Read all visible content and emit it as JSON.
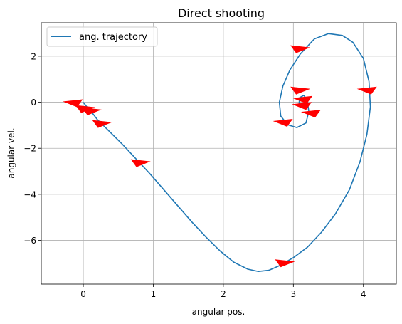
{
  "chart_data": {
    "type": "line",
    "title": "Direct shooting",
    "xlabel": "angular pos.",
    "ylabel": "angular vel.",
    "xlim": [
      -0.6,
      4.47
    ],
    "ylim": [
      -7.9,
      3.45
    ],
    "xticks": [
      0,
      1,
      2,
      3,
      4
    ],
    "yticks": [
      -6,
      -4,
      -2,
      0,
      2
    ],
    "grid": true,
    "legend_position": "top-left",
    "series": [
      {
        "name": "ang. trajectory",
        "color": "#1f77b4",
        "points": [
          [
            0.0,
            0.0
          ],
          [
            0.05,
            -0.2
          ],
          [
            0.1,
            -0.35
          ],
          [
            0.2,
            -0.75
          ],
          [
            0.35,
            -1.2
          ],
          [
            0.55,
            -1.8
          ],
          [
            0.75,
            -2.45
          ],
          [
            0.95,
            -3.1
          ],
          [
            1.15,
            -3.8
          ],
          [
            1.35,
            -4.5
          ],
          [
            1.55,
            -5.2
          ],
          [
            1.75,
            -5.85
          ],
          [
            1.95,
            -6.45
          ],
          [
            2.15,
            -6.95
          ],
          [
            2.35,
            -7.25
          ],
          [
            2.5,
            -7.35
          ],
          [
            2.65,
            -7.3
          ],
          [
            2.8,
            -7.1
          ],
          [
            3.0,
            -6.75
          ],
          [
            3.2,
            -6.3
          ],
          [
            3.4,
            -5.65
          ],
          [
            3.6,
            -4.85
          ],
          [
            3.8,
            -3.8
          ],
          [
            3.95,
            -2.6
          ],
          [
            4.05,
            -1.4
          ],
          [
            4.1,
            -0.2
          ],
          [
            4.08,
            0.9
          ],
          [
            4.0,
            1.9
          ],
          [
            3.85,
            2.6
          ],
          [
            3.7,
            2.9
          ],
          [
            3.5,
            2.98
          ],
          [
            3.3,
            2.75
          ],
          [
            3.1,
            2.1
          ],
          [
            2.95,
            1.4
          ],
          [
            2.85,
            0.7
          ],
          [
            2.8,
            0.0
          ],
          [
            2.82,
            -0.6
          ],
          [
            2.92,
            -0.98
          ],
          [
            3.05,
            -1.1
          ],
          [
            3.18,
            -0.9
          ],
          [
            3.22,
            -0.4
          ],
          [
            3.2,
            0.05
          ],
          [
            3.15,
            0.3
          ],
          [
            3.09,
            0.2
          ],
          [
            3.08,
            -0.1
          ],
          [
            3.14,
            -0.2
          ],
          [
            3.2,
            -0.05
          ],
          [
            3.18,
            0.15
          ]
        ]
      }
    ],
    "arrow_color": "#ff0000",
    "arrows": [
      {
        "x": -0.15,
        "y": 0.0,
        "dir": -1
      },
      {
        "x": 0.03,
        "y": -0.25,
        "dir": 1
      },
      {
        "x": 0.12,
        "y": -0.35,
        "dir": 1
      },
      {
        "x": 0.27,
        "y": -0.9,
        "dir": 1
      },
      {
        "x": 0.82,
        "y": -2.6,
        "dir": 1
      },
      {
        "x": 2.88,
        "y": -6.95,
        "dir": 1
      },
      {
        "x": 2.85,
        "y": -0.85,
        "dir": -1
      },
      {
        "x": 3.1,
        "y": 2.35,
        "dir": 1
      },
      {
        "x": 3.1,
        "y": 0.55,
        "dir": 1
      },
      {
        "x": 3.13,
        "y": 0.15,
        "dir": -1
      },
      {
        "x": 3.12,
        "y": -0.12,
        "dir": -1
      },
      {
        "x": 3.25,
        "y": -0.45,
        "dir": -1
      },
      {
        "x": 4.05,
        "y": 0.55,
        "dir": -1
      }
    ]
  }
}
